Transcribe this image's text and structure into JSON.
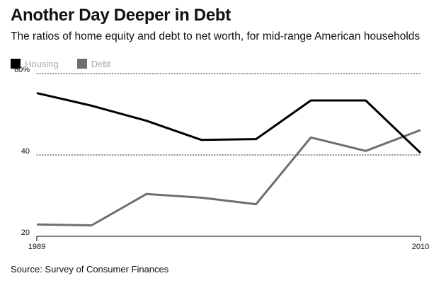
{
  "title": "Another Day Deeper in Debt",
  "subtitle": "The ratios of home equity and debt to net worth, for mid-range American households",
  "source": "Source: Survey of Consumer Finances",
  "colors": {
    "housing": "#000000",
    "debt": "#6e6e6e",
    "gridline": "#555555",
    "axis": "#000000"
  },
  "chart_data": {
    "type": "line",
    "title": "Another Day Deeper in Debt",
    "subtitle": "The ratios of home equity and debt to net worth, for mid-range American households",
    "x": [
      1989,
      1992,
      1995,
      1998,
      2001,
      2004,
      2007,
      2010
    ],
    "x_tick_labels": [
      "1989",
      "2010"
    ],
    "x_ticks": [
      1989,
      2010
    ],
    "xlim": [
      1989,
      2010
    ],
    "ylim": [
      20,
      60
    ],
    "y_ticks": [
      20,
      40,
      60
    ],
    "y_tick_labels": [
      "20",
      "40",
      "60%"
    ],
    "grid": true,
    "legend_position": "top-left",
    "series": [
      {
        "name": "Housing",
        "color": "#000000",
        "values": [
          55.2,
          52.1,
          48.4,
          43.7,
          43.9,
          53.4,
          53.4,
          40.5
        ]
      },
      {
        "name": "Debt",
        "color": "#6e6e6e",
        "values": [
          22.9,
          22.7,
          30.4,
          29.5,
          27.9,
          44.3,
          41.0,
          46.1
        ]
      }
    ]
  }
}
